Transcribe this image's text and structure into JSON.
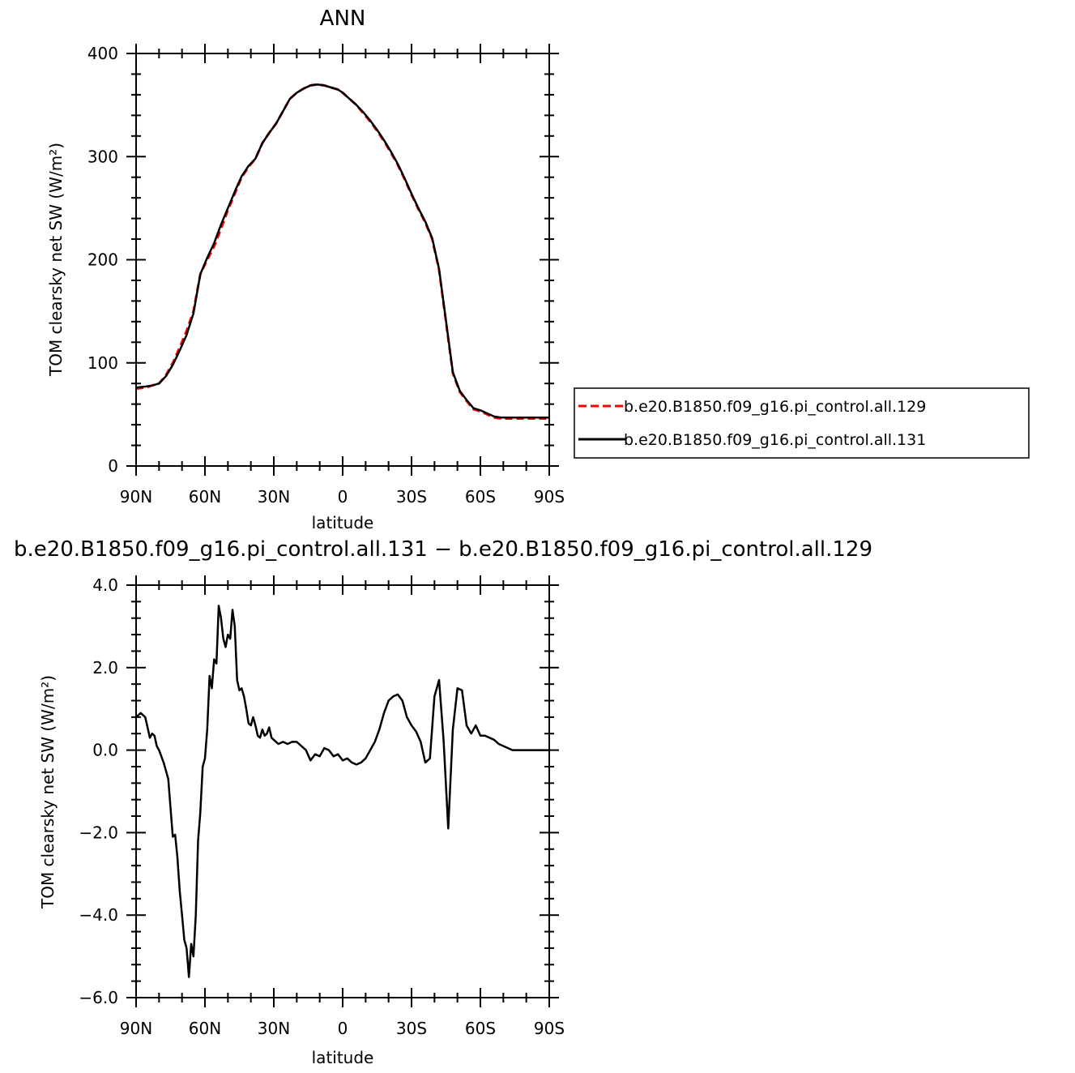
{
  "chart_data": [
    {
      "type": "line",
      "title": "ANN",
      "xlabel": "latitude",
      "ylabel": "TOM clearsky net SW (W/m²)",
      "xlim": [
        90,
        -90
      ],
      "ylim": [
        0,
        400
      ],
      "xticks": [
        90,
        60,
        30,
        0,
        -30,
        -60,
        -90
      ],
      "xtick_labels": [
        "90N",
        "60N",
        "30N",
        "0",
        "30S",
        "60S",
        "90S"
      ],
      "yticks": [
        0,
        100,
        200,
        300,
        400
      ],
      "ytick_labels": [
        "0",
        "100",
        "200",
        "300",
        "400"
      ],
      "grid": false,
      "legend_position": "right",
      "series": [
        {
          "name": "b.e20.B1850.f09_g16.pi_control.all.129",
          "color": "#ff0000",
          "dash": "dashed",
          "x": [
            90,
            86,
            83,
            80,
            77,
            74,
            71,
            68,
            65,
            62,
            59,
            56,
            53,
            50,
            47,
            44,
            41,
            38,
            35,
            32,
            29,
            26,
            23,
            20,
            17,
            14,
            11,
            8,
            5,
            2,
            0,
            -3,
            -6,
            -9,
            -12,
            -15,
            -18,
            -21,
            -24,
            -27,
            -30,
            -33,
            -36,
            -39,
            -42,
            -45,
            -48,
            -51,
            -54,
            -57,
            -60,
            -63,
            -66,
            -69,
            -72,
            -75,
            -78,
            -81,
            -84,
            -87,
            -90
          ],
          "y": [
            75,
            76,
            78,
            80,
            88,
            100,
            115,
            131,
            150,
            186,
            200,
            213,
            230,
            248,
            264,
            280,
            290,
            298,
            313,
            323,
            332,
            344,
            356,
            362,
            366,
            369,
            370,
            369,
            367,
            365,
            362,
            356,
            350,
            342,
            334,
            325,
            315,
            304,
            292,
            278,
            263,
            249,
            236,
            220,
            190,
            140,
            90,
            72,
            63,
            55,
            53,
            50,
            47,
            46,
            46,
            46,
            46,
            46,
            46,
            46,
            46
          ]
        },
        {
          "name": "b.e20.B1850.f09_g16.pi_control.all.131",
          "color": "#000000",
          "dash": "solid",
          "x": [
            90,
            86,
            83,
            80,
            77,
            74,
            71,
            68,
            65,
            62,
            59,
            56,
            53,
            50,
            47,
            44,
            41,
            38,
            35,
            32,
            29,
            26,
            23,
            20,
            17,
            14,
            11,
            8,
            5,
            2,
            0,
            -3,
            -6,
            -9,
            -12,
            -15,
            -18,
            -21,
            -24,
            -27,
            -30,
            -33,
            -36,
            -39,
            -42,
            -45,
            -48,
            -51,
            -54,
            -57,
            -60,
            -63,
            -66,
            -69,
            -72,
            -75,
            -78,
            -81,
            -84,
            -87,
            -90
          ],
          "y": [
            76,
            77,
            78,
            80,
            87,
            98,
            112,
            127,
            148,
            186,
            202,
            216,
            234,
            250,
            266,
            281,
            291,
            298,
            313,
            323,
            332,
            344,
            356,
            362,
            366,
            369,
            370,
            369,
            367,
            365,
            362,
            356,
            350,
            343,
            335,
            326,
            316,
            305,
            293,
            279,
            264,
            250,
            237,
            221,
            191,
            141,
            91,
            73,
            64,
            56,
            54,
            51,
            48,
            47,
            47,
            47,
            47,
            47,
            47,
            47,
            47
          ]
        }
      ]
    },
    {
      "type": "line",
      "title": "b.e20.B1850.f09_g16.pi_control.all.131 − b.e20.B1850.f09_g16.pi_control.all.129",
      "xlabel": "latitude",
      "ylabel": "TOM clearsky net SW (W/m²)",
      "xlim": [
        90,
        -90
      ],
      "ylim": [
        -6,
        4
      ],
      "xticks": [
        90,
        60,
        30,
        0,
        -30,
        -60,
        -90
      ],
      "xtick_labels": [
        "90N",
        "60N",
        "30N",
        "0",
        "30S",
        "60S",
        "90S"
      ],
      "yticks": [
        -6,
        -4,
        -2,
        0,
        2,
        4
      ],
      "ytick_labels": [
        "−6.0",
        "−4.0",
        "−2.0",
        "0.0",
        "2.0",
        "4.0"
      ],
      "grid": false,
      "series": [
        {
          "color": "#000000",
          "dash": "solid",
          "x": [
            90,
            88,
            86,
            84,
            83,
            82,
            81,
            80,
            78,
            76,
            74,
            73,
            72,
            71,
            70,
            69,
            68,
            67,
            66,
            65,
            64,
            63,
            62,
            61,
            60,
            59,
            58,
            57,
            56,
            55,
            54,
            53,
            52,
            51,
            50,
            49,
            48,
            47,
            46,
            45,
            44,
            43,
            42,
            41,
            40,
            39,
            38,
            37,
            36,
            35,
            34,
            33,
            32,
            31,
            30,
            28,
            26,
            24,
            22,
            20,
            18,
            16,
            14,
            12,
            10,
            8,
            6,
            4,
            2,
            0,
            -2,
            -4,
            -6,
            -8,
            -10,
            -12,
            -14,
            -16,
            -18,
            -20,
            -22,
            -24,
            -26,
            -28,
            -30,
            -32,
            -34,
            -36,
            -38,
            -40,
            -42,
            -44,
            -46,
            -48,
            -50,
            -52,
            -54,
            -56,
            -58,
            -60,
            -62,
            -64,
            -66,
            -68,
            -70,
            -72,
            -74,
            -76,
            -78,
            -80,
            -82,
            -84,
            -86,
            -88,
            -90
          ],
          "y": [
            0.8,
            0.9,
            0.8,
            0.3,
            0.4,
            0.35,
            0.1,
            0.0,
            -0.3,
            -0.7,
            -2.1,
            -2.05,
            -2.6,
            -3.4,
            -4.0,
            -4.6,
            -4.8,
            -5.5,
            -4.7,
            -5.0,
            -4.0,
            -2.2,
            -1.5,
            -0.4,
            -0.2,
            0.5,
            1.8,
            1.5,
            2.2,
            2.1,
            3.5,
            3.2,
            2.7,
            2.5,
            2.8,
            2.7,
            3.4,
            3.0,
            1.7,
            1.45,
            1.5,
            1.3,
            1.0,
            0.65,
            0.6,
            0.8,
            0.6,
            0.35,
            0.3,
            0.5,
            0.35,
            0.4,
            0.55,
            0.3,
            0.25,
            0.15,
            0.2,
            0.15,
            0.2,
            0.2,
            0.1,
            0.0,
            -0.25,
            -0.1,
            -0.15,
            0.05,
            0.0,
            -0.15,
            -0.1,
            -0.25,
            -0.2,
            -0.3,
            -0.35,
            -0.3,
            -0.2,
            0.0,
            0.2,
            0.5,
            0.9,
            1.2,
            1.3,
            1.35,
            1.2,
            0.8,
            0.6,
            0.45,
            0.2,
            -0.3,
            -0.2,
            1.3,
            1.7,
            0.2,
            -1.9,
            0.5,
            1.5,
            1.45,
            0.6,
            0.4,
            0.6,
            0.35,
            0.35,
            0.3,
            0.25,
            0.15,
            0.1,
            0.05,
            0.0,
            0.0,
            0.0,
            0.0,
            0.0,
            0.0,
            0.0,
            0.0,
            0.0
          ]
        }
      ]
    }
  ]
}
